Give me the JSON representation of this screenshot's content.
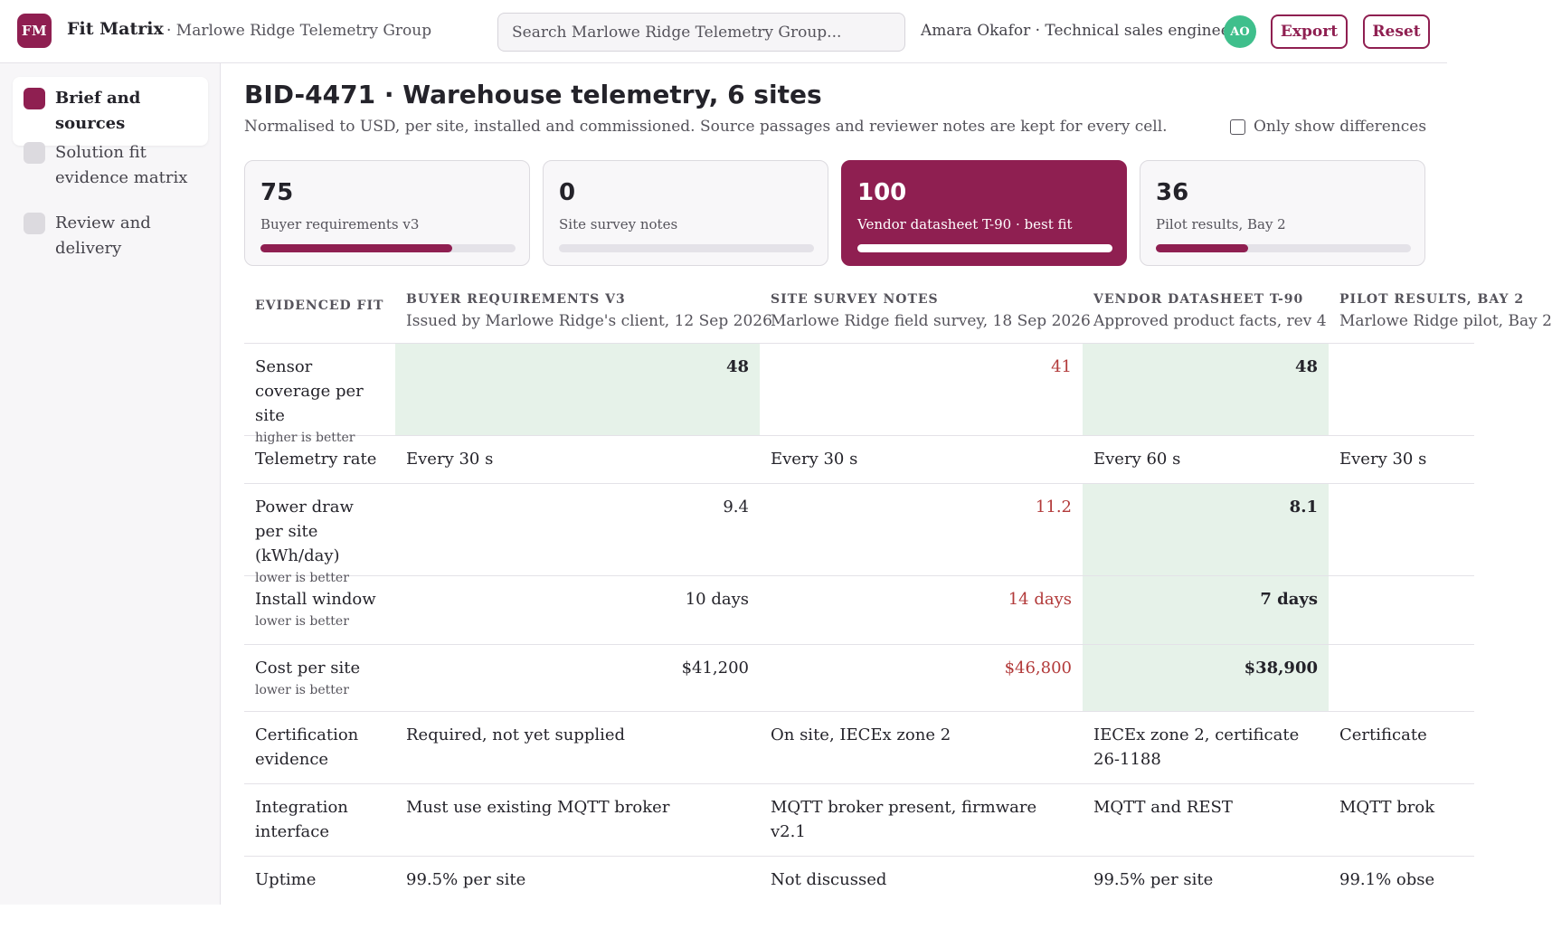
{
  "app": {
    "logo_initials": "FM",
    "name": "Fit Matrix",
    "org": "· Marlowe Ridge Telemetry Group",
    "search_placeholder": "Search Marlowe Ridge Telemetry Group...",
    "user": "Amara Okafor · Technical sales engineer",
    "avatar_initials": "AO",
    "export_label": "Export",
    "reset_label": "Reset",
    "accent_color": "#8f1f51",
    "avatar_color": "#3fbf8c"
  },
  "sidebar": {
    "items": [
      {
        "label": "Brief and sources",
        "active": true
      },
      {
        "label": "Solution fit evidence matrix",
        "active": false
      },
      {
        "label": "Review and delivery",
        "active": false
      }
    ]
  },
  "page": {
    "title": "BID-4471 · Warehouse telemetry, 6 sites",
    "subtitle": "Normalised to USD, per site, installed and commissioned. Source passages and reviewer notes are kept for every cell.",
    "diff_toggle_label": "Only show differences",
    "diff_toggle_checked": false
  },
  "cards": [
    {
      "value": "75",
      "label": "Buyer requirements v3",
      "fill": 0.75,
      "best": false
    },
    {
      "value": "0",
      "label": "Site survey notes",
      "fill": 0.0,
      "best": false
    },
    {
      "value": "100",
      "label": "Vendor datasheet T-90 · best fit",
      "fill": 1.0,
      "best": true
    },
    {
      "value": "36",
      "label": "Pilot results, Bay 2",
      "fill": 0.36,
      "best": false
    }
  ],
  "matrix": {
    "corner_label": "EVIDENCED FIT",
    "columns": [
      {
        "name": "BUYER REQUIREMENTS V3",
        "desc": "Issued by Marlowe Ridge's client, 12 Sep 2026"
      },
      {
        "name": "SITE SURVEY NOTES",
        "desc": "Marlowe Ridge field survey, 18 Sep 2026"
      },
      {
        "name": "VENDOR DATASHEET T-90",
        "desc": "Approved product facts, rev 4"
      },
      {
        "name": "PILOT RESULTS, BAY 2",
        "desc": "Marlowe Ridge pilot, Bay 2"
      }
    ],
    "rows": [
      {
        "label": "Sensor coverage per site",
        "hint": "higher is better",
        "cells": [
          "48",
          "41",
          "48",
          ""
        ]
      },
      {
        "label": "Telemetry rate",
        "hint": "",
        "cells": [
          "Every 30 s",
          "Every 30 s",
          "Every 60 s",
          "Every 30 s"
        ]
      },
      {
        "label": "Power draw per site (kWh/day)",
        "hint": "lower is better",
        "cells": [
          "9.4",
          "11.2",
          "8.1",
          ""
        ]
      },
      {
        "label": "Install window",
        "hint": "lower is better",
        "cells": [
          "10 days",
          "14 days",
          "7 days",
          ""
        ]
      },
      {
        "label": "Cost per site",
        "hint": "lower is better",
        "cells": [
          "$41,200",
          "$46,800",
          "$38,900",
          ""
        ]
      },
      {
        "label": "Certification evidence",
        "hint": "",
        "cells": [
          "Required, not yet supplied",
          "On site, IECEx zone 2",
          "IECEx zone 2, certificate 26-1188",
          "Certificate"
        ]
      },
      {
        "label": "Integration interface",
        "hint": "",
        "cells": [
          "Must use existing MQTT broker",
          "MQTT broker present, firmware v2.1",
          "MQTT and REST",
          "MQTT brok"
        ]
      },
      {
        "label": "Uptime",
        "hint": "",
        "cells": [
          "99.5% per site",
          "Not discussed",
          "99.5% per site",
          "99.1% obse"
        ]
      }
    ]
  }
}
